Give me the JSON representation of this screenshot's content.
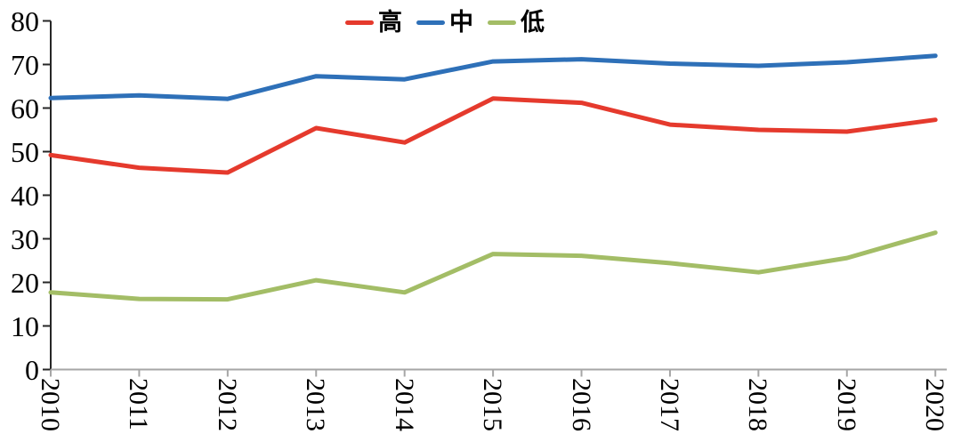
{
  "chart_data": {
    "type": "line",
    "title": "",
    "xlabel": "",
    "ylabel": "",
    "categories": [
      "2010",
      "2011",
      "2012",
      "2013",
      "2014",
      "2015",
      "2016",
      "2017",
      "2018",
      "2019",
      "2020"
    ],
    "series": [
      {
        "name": "高",
        "color": "#e53a2d",
        "values": [
          49.2,
          46.3,
          45.2,
          55.4,
          52.1,
          62.2,
          61.2,
          56.2,
          55.0,
          54.6,
          57.3
        ]
      },
      {
        "name": "中",
        "color": "#2e70b8",
        "values": [
          62.3,
          62.9,
          62.1,
          67.3,
          66.6,
          70.7,
          71.2,
          70.2,
          69.7,
          70.5,
          72.0
        ]
      },
      {
        "name": "低",
        "color": "#a3bd66",
        "values": [
          17.7,
          16.2,
          16.1,
          20.5,
          17.7,
          26.5,
          26.1,
          24.4,
          22.3,
          25.6,
          31.4
        ]
      }
    ],
    "ylim": [
      0,
      80
    ],
    "yticks": [
      0,
      10,
      20,
      30,
      40,
      50,
      60,
      70,
      80
    ],
    "grid": false,
    "legend_position": "top-center",
    "x_label_rotation_deg": 90
  },
  "colors": {
    "background": "#ffffff",
    "y_axis": "#262626",
    "x_axis": "#a6a6a6",
    "tick_text": "#000000"
  }
}
